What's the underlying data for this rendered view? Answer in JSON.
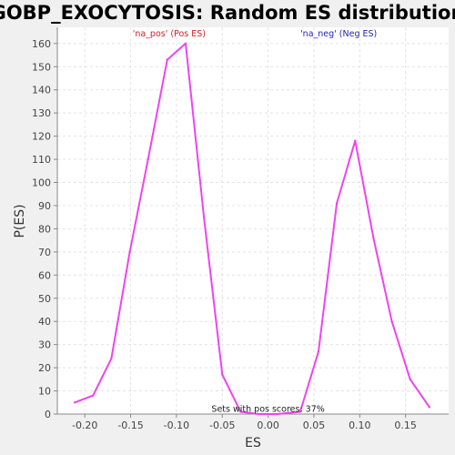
{
  "chart_data": {
    "type": "line",
    "title": "GOBP_EXOCYTOSIS: Random ES distribution",
    "xlabel": "ES",
    "ylabel": "P(ES)",
    "xlim": [
      -0.23,
      0.197
    ],
    "ylim": [
      0,
      167
    ],
    "xticks": [
      -0.2,
      -0.15,
      -0.1,
      -0.05,
      0.0,
      0.05,
      0.1,
      0.15
    ],
    "xtick_labels": [
      "-0.20",
      "-0.15",
      "-0.10",
      "-0.05",
      "0.00",
      "0.05",
      "0.10",
      "0.15"
    ],
    "yticks": [
      0,
      10,
      20,
      30,
      40,
      50,
      60,
      70,
      80,
      90,
      100,
      110,
      120,
      130,
      140,
      150,
      160
    ],
    "grid": true,
    "series": [
      {
        "color": "#ee44ee",
        "x": [
          -0.211,
          -0.191,
          -0.171,
          -0.151,
          -0.131,
          -0.11,
          -0.09,
          -0.07,
          -0.05,
          -0.03,
          -0.01,
          0.01,
          0.035,
          0.055,
          0.075,
          0.095,
          0.115,
          0.135,
          0.155,
          0.176
        ],
        "y": [
          5,
          8,
          24,
          70,
          110,
          153,
          160,
          85,
          17,
          1,
          0,
          0,
          1,
          27,
          91,
          118,
          76,
          40,
          15,
          3
        ]
      }
    ],
    "annotations": [
      {
        "text": "'na_pos' (Pos ES)",
        "color": "#cc2222",
        "x": -0.108,
        "y": 163
      },
      {
        "text": "'na_neg' (Neg ES)",
        "color": "#2222bb",
        "x": 0.077,
        "y": 163
      },
      {
        "text": "Sets with pos scores: 37%",
        "color": "#222222",
        "x": 0.0,
        "y": 1
      }
    ]
  }
}
